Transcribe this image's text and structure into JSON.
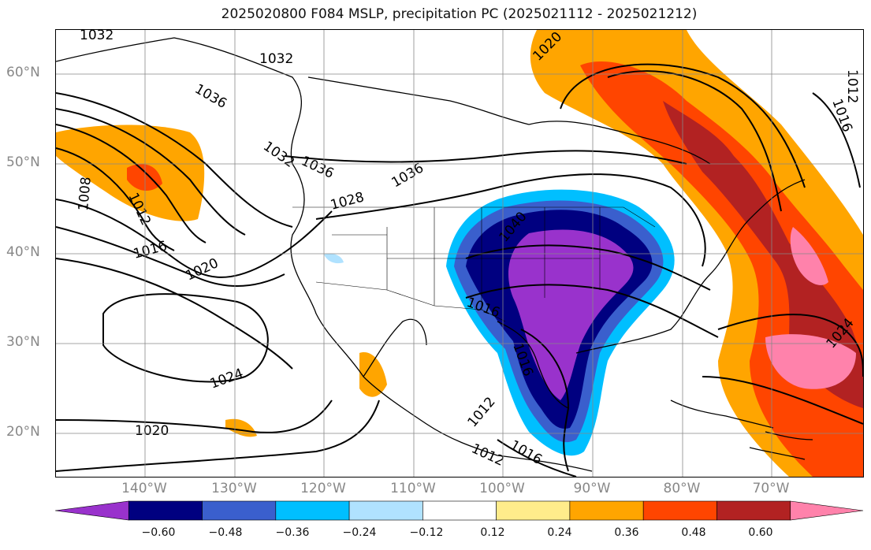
{
  "title": "2025020800 F084 MSLP, precipitation PC (2025021112 - 2025021212)",
  "lat_labels": [
    "60°N",
    "50°N",
    "40°N",
    "30°N",
    "20°N"
  ],
  "lon_labels": [
    "140°W",
    "130°W",
    "120°W",
    "110°W",
    "100°W",
    "90°W",
    "80°W",
    "70°W"
  ],
  "contour_labels": [
    "1032",
    "1032",
    "1036",
    "1032",
    "1036",
    "1036",
    "1028",
    "1040",
    "1016",
    "1016",
    "1020",
    "1016",
    "1024",
    "1020",
    "1008",
    "1012",
    "1012",
    "1016",
    "1012",
    "1024",
    "1020",
    "1016",
    "1012"
  ],
  "colorbar": {
    "ticks": [
      "−0.60",
      "−0.48",
      "−0.36",
      "−0.24",
      "−0.12",
      "0.12",
      "0.24",
      "0.36",
      "0.48",
      "0.60"
    ],
    "colors": [
      "#9932cc",
      "#000080",
      "#3a5fcd",
      "#00bfff",
      "#b0e2ff",
      "#ffffff",
      "#ffec8b",
      "#ffa500",
      "#ff4500",
      "#b22222",
      "#ff82ab"
    ]
  }
}
